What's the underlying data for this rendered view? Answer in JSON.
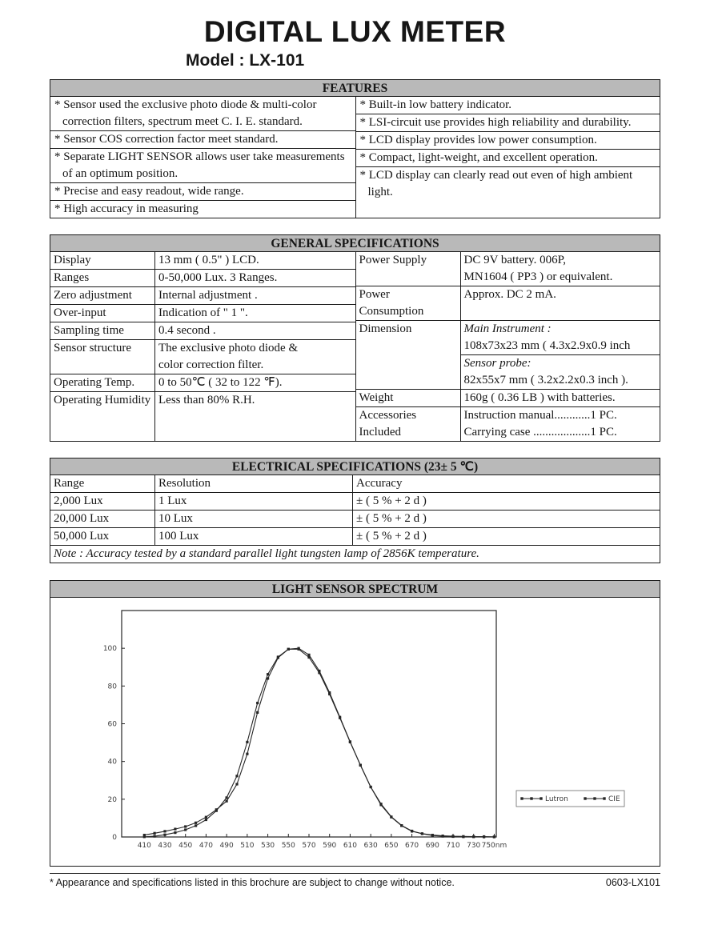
{
  "page": {
    "title": "DIGITAL LUX METER",
    "model": "Model : LX-101",
    "footer_note": "* Appearance and specifications listed in this brochure are subject to change without notice.",
    "footer_code": "0603-LX101"
  },
  "colors": {
    "header_bar": "#b9b9b9",
    "ink": "#1a1a1a",
    "chart_line": "#262626"
  },
  "features": {
    "header": "FEATURES",
    "left": [
      "* Sensor used the exclusive photo diode & multi-color correction filters, spectrum meet C. I. E. standard.",
      "* Sensor COS correction factor meet standard.",
      "* Separate LIGHT SENSOR allows user take measurements of an optimum position.",
      "* Precise and easy readout, wide range.",
      "* High accuracy in measuring"
    ],
    "right": [
      "* Built-in low battery indicator.",
      "* LSI-circuit use provides high reliability and durability.",
      "* LCD display provides low power consumption.",
      "* Compact, light-weight, and excellent operation.",
      "* LCD display can clearly read out even of high ambient light."
    ]
  },
  "general_specs": {
    "header": "GENERAL SPECIFICATIONS",
    "left_rows": [
      {
        "label": "Display",
        "value": "13 mm ( 0.5\" ) LCD."
      },
      {
        "label": "Ranges",
        "value": "0-50,000 Lux. 3 Ranges."
      },
      {
        "label": "Zero adjustment",
        "value": "Internal adjustment ."
      },
      {
        "label": "Over-input",
        "value": "Indication of \" 1 \"."
      },
      {
        "label": "Sampling time",
        "value": "0.4 second ."
      },
      {
        "label": "Sensor structure",
        "value_lines": [
          "The exclusive photo diode &",
          "color correction filter."
        ]
      },
      {
        "label": "Operating Temp.",
        "value": "0 to 50℃ ( 32 to 122 ℉)."
      },
      {
        "label": "Operating Humidity",
        "value": "Less than 80% R.H."
      }
    ],
    "right_rows": [
      {
        "label": "Power Supply",
        "value_lines": [
          "DC 9V battery. 006P,",
          "MN1604 ( PP3 ) or equivalent."
        ]
      },
      {
        "label": "Power Consumption",
        "value": "Approx. DC 2 mA."
      },
      {
        "label": "Dimension",
        "sub": [
          {
            "name": "Main Instrument :",
            "value": "108x73x23 mm ( 4.3x2.9x0.9 inch"
          },
          {
            "name": "Sensor probe:",
            "value": "82x55x7 mm ( 3.2x2.2x0.3 inch )."
          }
        ]
      },
      {
        "label": "Weight",
        "value": "160g ( 0.36 LB ) with batteries."
      },
      {
        "label": "Accessories Included",
        "value_lines": [
          "Instruction manual............1 PC.",
          "Carrying case ...................1 PC."
        ]
      }
    ]
  },
  "electrical_specs": {
    "header": "ELECTRICAL SPECIFICATIONS (23± 5 ℃)",
    "columns": [
      "Range",
      "Resolution",
      "Accuracy"
    ],
    "rows": [
      [
        "2,000 Lux",
        "1 Lux",
        "± ( 5 % + 2 d )"
      ],
      [
        "20,000 Lux",
        "10 Lux",
        "± ( 5 % + 2 d )"
      ],
      [
        "50,000 Lux",
        "100 Lux",
        "± ( 5 % + 2 d )"
      ]
    ],
    "note": "Note : Accuracy tested by a standard parallel light tungsten lamp of 2856K temperature."
  },
  "chart_data": {
    "type": "line",
    "title": "LIGHT SENSOR SPECTRUM",
    "x": [
      410,
      420,
      430,
      440,
      450,
      460,
      470,
      480,
      490,
      500,
      510,
      520,
      530,
      540,
      550,
      560,
      570,
      580,
      590,
      600,
      610,
      620,
      630,
      640,
      650,
      660,
      670,
      680,
      690,
      700,
      710,
      720,
      730,
      740,
      750
    ],
    "series": [
      {
        "name": "Lutron",
        "values": [
          1,
          2,
          3,
          4.2,
          5.5,
          7.5,
          10.5,
          14.5,
          19,
          28,
          44,
          66,
          84,
          95,
          99.5,
          100,
          96.5,
          88,
          76.5,
          63.5,
          50.5,
          38,
          26.5,
          17,
          10.5,
          6,
          3,
          1.8,
          1,
          0.6,
          0.4,
          0.3,
          0.2,
          0.2,
          0.1
        ]
      },
      {
        "name": "CIE",
        "values": [
          0.1,
          0.4,
          1.2,
          2.3,
          3.8,
          6,
          9.1,
          13.9,
          20.8,
          32.3,
          50.3,
          71,
          86.2,
          95.4,
          99.5,
          99.5,
          95.2,
          87,
          75.7,
          63.1,
          50.3,
          38.1,
          26.5,
          17.5,
          10.7,
          6.1,
          3.2,
          1.7,
          0.8,
          0.4,
          0.2,
          0.1,
          0.1,
          0,
          0
        ]
      }
    ],
    "xlabel": "",
    "ylabel": "",
    "ylim": [
      0,
      100
    ],
    "yticks": [
      0,
      20,
      40,
      60,
      80,
      100
    ],
    "xticks": [
      410,
      430,
      450,
      470,
      490,
      510,
      530,
      550,
      570,
      590,
      610,
      630,
      650,
      670,
      690,
      710,
      730,
      750
    ],
    "xtick_labels": [
      "410",
      "430",
      "450",
      "470",
      "490",
      "510",
      "530",
      "550",
      "570",
      "590",
      "610",
      "630",
      "650",
      "670",
      "690",
      "710",
      "730",
      "750nm"
    ],
    "legend_position": "right",
    "grid": false
  }
}
